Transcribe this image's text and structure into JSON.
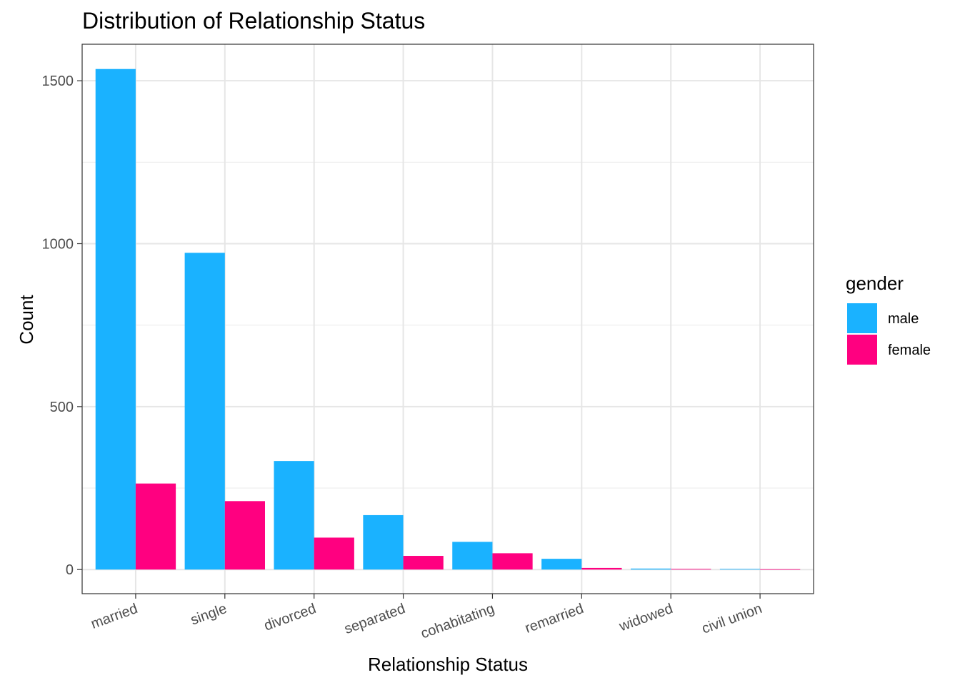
{
  "chart_data": {
    "type": "bar",
    "title": "Distribution of Relationship Status",
    "xlabel": "Relationship Status",
    "ylabel": "Count",
    "categories": [
      "married",
      "single",
      "divorced",
      "separated",
      "cohabitating",
      "remarried",
      "widowed",
      "civil union"
    ],
    "series": [
      {
        "name": "male",
        "color": "#1AB2FF",
        "values": [
          1536,
          972,
          333,
          167,
          85,
          33,
          3,
          2
        ]
      },
      {
        "name": "female",
        "color": "#FF0080",
        "values": [
          264,
          210,
          98,
          42,
          50,
          5,
          2,
          1
        ]
      }
    ],
    "yticks": [
      0,
      500,
      1000,
      1500
    ],
    "ylim": [
      -74,
      1612
    ],
    "grid": true,
    "legend": {
      "title": "gender",
      "position": "right"
    }
  }
}
